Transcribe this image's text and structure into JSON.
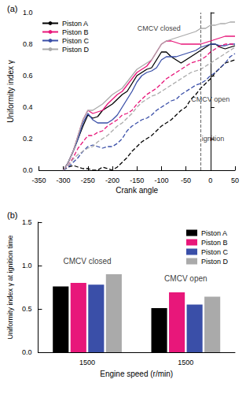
{
  "chart_data": [
    {
      "type": "line",
      "title": "(a)",
      "x_label": "Crank angle",
      "y_label": "Uniformity index γ",
      "x": [
        -300,
        -290,
        -280,
        -270,
        -260,
        -250,
        -240,
        -230,
        -220,
        -210,
        -200,
        -190,
        -180,
        -170,
        -160,
        -150,
        -140,
        -130,
        -120,
        -110,
        -100,
        -90,
        -80,
        -70,
        -60,
        -50,
        -40,
        -30,
        -20,
        -10,
        0,
        10,
        20,
        30,
        40,
        50
      ],
      "series": [
        {
          "name": "Piston A",
          "color": "#000000",
          "line_style": "solid",
          "values": [
            0,
            0.05,
            0.12,
            0.2,
            0.28,
            0.35,
            0.33,
            0.34,
            0.38,
            0.4,
            0.42,
            0.45,
            0.48,
            0.5,
            0.55,
            0.6,
            0.62,
            0.64,
            0.65,
            0.7,
            0.75,
            0.75,
            0.72,
            0.7,
            0.68,
            0.7,
            0.72,
            0.74,
            0.76,
            0.78,
            0.8,
            0.8,
            0.78,
            0.77,
            0.78,
            0.79
          ]
        },
        {
          "name": "Piston B",
          "color": "#e8177a",
          "line_style": "solid",
          "values": [
            0,
            0.05,
            0.12,
            0.22,
            0.32,
            0.38,
            0.36,
            0.37,
            0.38,
            0.42,
            0.45,
            0.48,
            0.5,
            0.54,
            0.58,
            0.62,
            0.64,
            0.66,
            0.7,
            0.75,
            0.8,
            0.82,
            0.82,
            0.81,
            0.8,
            0.8,
            0.8,
            0.8,
            0.8,
            0.81,
            0.82,
            0.83,
            0.84,
            0.85,
            0.85,
            0.85
          ]
        },
        {
          "name": "Piston C",
          "color": "#3a4fa8",
          "line_style": "solid",
          "values": [
            0,
            0.05,
            0.12,
            0.2,
            0.3,
            0.36,
            0.32,
            0.3,
            0.3,
            0.3,
            0.32,
            0.35,
            0.4,
            0.45,
            0.5,
            0.56,
            0.6,
            0.62,
            0.63,
            0.65,
            0.7,
            0.72,
            0.72,
            0.72,
            0.73,
            0.74,
            0.75,
            0.76,
            0.78,
            0.79,
            0.8,
            0.8,
            0.79,
            0.79,
            0.8,
            0.8
          ]
        },
        {
          "name": "Piston D",
          "color": "#aaaaaa",
          "line_style": "solid",
          "values": [
            0,
            0.05,
            0.12,
            0.22,
            0.32,
            0.38,
            0.38,
            0.4,
            0.42,
            0.45,
            0.48,
            0.5,
            0.52,
            0.56,
            0.6,
            0.64,
            0.66,
            0.68,
            0.7,
            0.75,
            0.8,
            0.82,
            0.83,
            0.84,
            0.85,
            0.86,
            0.87,
            0.88,
            0.9,
            0.9,
            0.92,
            0.92,
            0.93,
            0.93,
            0.94,
            0.94
          ]
        },
        {
          "name": "Piston A",
          "color": "#000000",
          "line_style": "dashed",
          "values": [
            0,
            0.02,
            0.03,
            0.02,
            0.01,
            0.01,
            0,
            0,
            0.02,
            0.01,
            0,
            0.02,
            0.05,
            0.08,
            0.12,
            0.15,
            0.18,
            0.2,
            0.22,
            0.25,
            0.28,
            0.3,
            0.32,
            0.35,
            0.38,
            0.4,
            0.45,
            0.48,
            0.52,
            0.55,
            0.58,
            0.62,
            0.65,
            0.68,
            0.69,
            0.7
          ]
        },
        {
          "name": "Piston B",
          "color": "#e8177a",
          "line_style": "dashed",
          "values": [
            0,
            0.03,
            0.08,
            0.14,
            0.18,
            0.22,
            0.22,
            0.24,
            0.25,
            0.28,
            0.3,
            0.32,
            0.35,
            0.36,
            0.38,
            0.42,
            0.45,
            0.48,
            0.5,
            0.52,
            0.55,
            0.58,
            0.6,
            0.62,
            0.64,
            0.66,
            0.68,
            0.69,
            0.7,
            0.72,
            0.75,
            0.77,
            0.79,
            0.8,
            0.8,
            0.8
          ]
        },
        {
          "name": "Piston C",
          "color": "#3a4fa8",
          "line_style": "dashed",
          "values": [
            0,
            0.02,
            0.05,
            0.08,
            0.12,
            0.15,
            0.16,
            0.15,
            0.14,
            0.15,
            0.15,
            0.17,
            0.2,
            0.25,
            0.28,
            0.3,
            0.32,
            0.33,
            0.35,
            0.38,
            0.4,
            0.42,
            0.44,
            0.45,
            0.48,
            0.5,
            0.52,
            0.54,
            0.55,
            0.57,
            0.6,
            0.62,
            0.65,
            0.68,
            0.72,
            0.74
          ]
        },
        {
          "name": "Piston D",
          "color": "#aaaaaa",
          "line_style": "dashed",
          "values": [
            0,
            0.03,
            0.07,
            0.1,
            0.12,
            0.14,
            0.15,
            0.18,
            0.2,
            0.22,
            0.25,
            0.28,
            0.3,
            0.33,
            0.36,
            0.4,
            0.43,
            0.45,
            0.47,
            0.48,
            0.5,
            0.52,
            0.54,
            0.56,
            0.58,
            0.6,
            0.62,
            0.63,
            0.64,
            0.66,
            0.68,
            0.7,
            0.72,
            0.74,
            0.76,
            0.78
          ]
        }
      ],
      "xlim": [
        -350,
        50
      ],
      "xticks": [
        -350,
        -300,
        -250,
        -200,
        -150,
        -100,
        -50,
        0,
        50
      ],
      "ylim": [
        0,
        1
      ],
      "yticks": [
        {
          "value": 0,
          "label": "0.0"
        },
        0.2,
        0.4,
        0.6,
        0.8,
        {
          "value": 1,
          "label": "1.0"
        }
      ],
      "grid": false,
      "legend": "upper left",
      "vlines": [
        {
          "x": -20
        }
      ],
      "annotations": [
        {
          "text": "CMCV closed",
          "x": -105,
          "y": 0.9
        },
        {
          "text": "CMCV open",
          "x": 0,
          "y": 0.45
        },
        {
          "text": "ignition",
          "x": 5,
          "y": 0.2
        }
      ]
    },
    {
      "type": "bar",
      "title": "(b)",
      "x_label": "Engine speed (r/min)",
      "y_label": "Uniformity index γ at ignition time",
      "categories": [
        "1500",
        "1500"
      ],
      "series": [
        {
          "name": "Piston A",
          "color": "#000000",
          "values": [
            0.76,
            0.51
          ]
        },
        {
          "name": "Piston B",
          "color": "#e8177a",
          "values": [
            0.8,
            0.69
          ]
        },
        {
          "name": "Piston C",
          "color": "#3a4fa8",
          "values": [
            0.78,
            0.55
          ]
        },
        {
          "name": "Piston D",
          "color": "#aaaaaa",
          "values": [
            0.9,
            0.64
          ]
        }
      ],
      "ylim": [
        0,
        1.5
      ],
      "yticks": [
        {
          "value": 0,
          "label": "0.0"
        },
        0.5,
        {
          "value": 1,
          "label": "1.0"
        },
        1.5
      ],
      "grid": false,
      "legend": "upper right",
      "annotations": [
        {
          "text": "CMCV closed",
          "category": 0,
          "y": 1.05
        },
        {
          "text": "CMCV open",
          "category": 1,
          "y": 0.85
        }
      ]
    }
  ]
}
